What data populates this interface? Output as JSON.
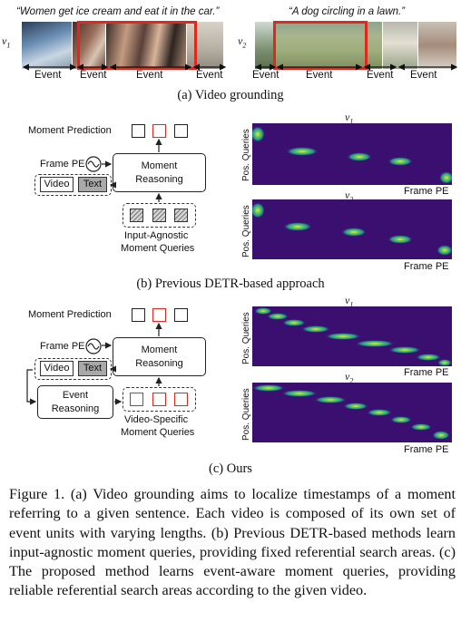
{
  "part_a": {
    "left_query": "“Women get ice cream and eat it in the car.”",
    "right_query": "“A dog circling in a lawn.”",
    "left_video_label": "v",
    "left_video_sub": "1",
    "right_video_label": "v",
    "right_video_sub": "2",
    "left_events": [
      "Event",
      "Event",
      "Event",
      "Event"
    ],
    "right_events": [
      "Event",
      "Event",
      "Event",
      "Event"
    ],
    "caption": "(a) Video grounding"
  },
  "part_b": {
    "moment_prediction": "Moment Prediction",
    "frame_pe": "Frame PE",
    "video_chip": "Video",
    "text_chip": "Text",
    "reasoning_line1": "Moment",
    "reasoning_line2": "Reasoning",
    "queries_line1": "Input-Agnostic",
    "queries_line2": "Moment Queries",
    "heatmap_top_label": "v",
    "heatmap_top_sub": "1",
    "heatmap_bottom_label": "v",
    "heatmap_bottom_sub": "2",
    "y_label": "Pos. Queries",
    "x_label": "Frame PE",
    "caption": "(b) Previous DETR-based approach"
  },
  "part_c": {
    "moment_prediction": "Moment Prediction",
    "frame_pe": "Frame PE",
    "video_chip": "Video",
    "text_chip": "Text",
    "reasoning_line1": "Moment",
    "reasoning_line2": "Reasoning",
    "event_line1": "Event",
    "event_line2": "Reasoning",
    "queries_line1": "Video-Specific",
    "queries_line2": "Moment Queries",
    "heatmap_top_label": "v",
    "heatmap_top_sub": "1",
    "heatmap_bottom_label": "v",
    "heatmap_bottom_sub": "2",
    "y_label": "Pos. Queries",
    "x_label": "Frame PE",
    "caption": "(c) Ours"
  },
  "figure_caption": "Figure 1. (a) Video grounding aims to localize timestamps of a moment referring to a given sentence. Each video is composed of its own set of event units with varying lengths. (b) Previous DETR-based methods learn input-agnostic moment queries, providing fixed referential search areas. (c) The proposed method learns event-aware moment queries, providing reliable referential search areas according to the given video.",
  "colors": {
    "accent_red": "#e0281e",
    "heatmap_bg": "#3b0f6f",
    "heatmap_peak": "#f4e61d"
  }
}
